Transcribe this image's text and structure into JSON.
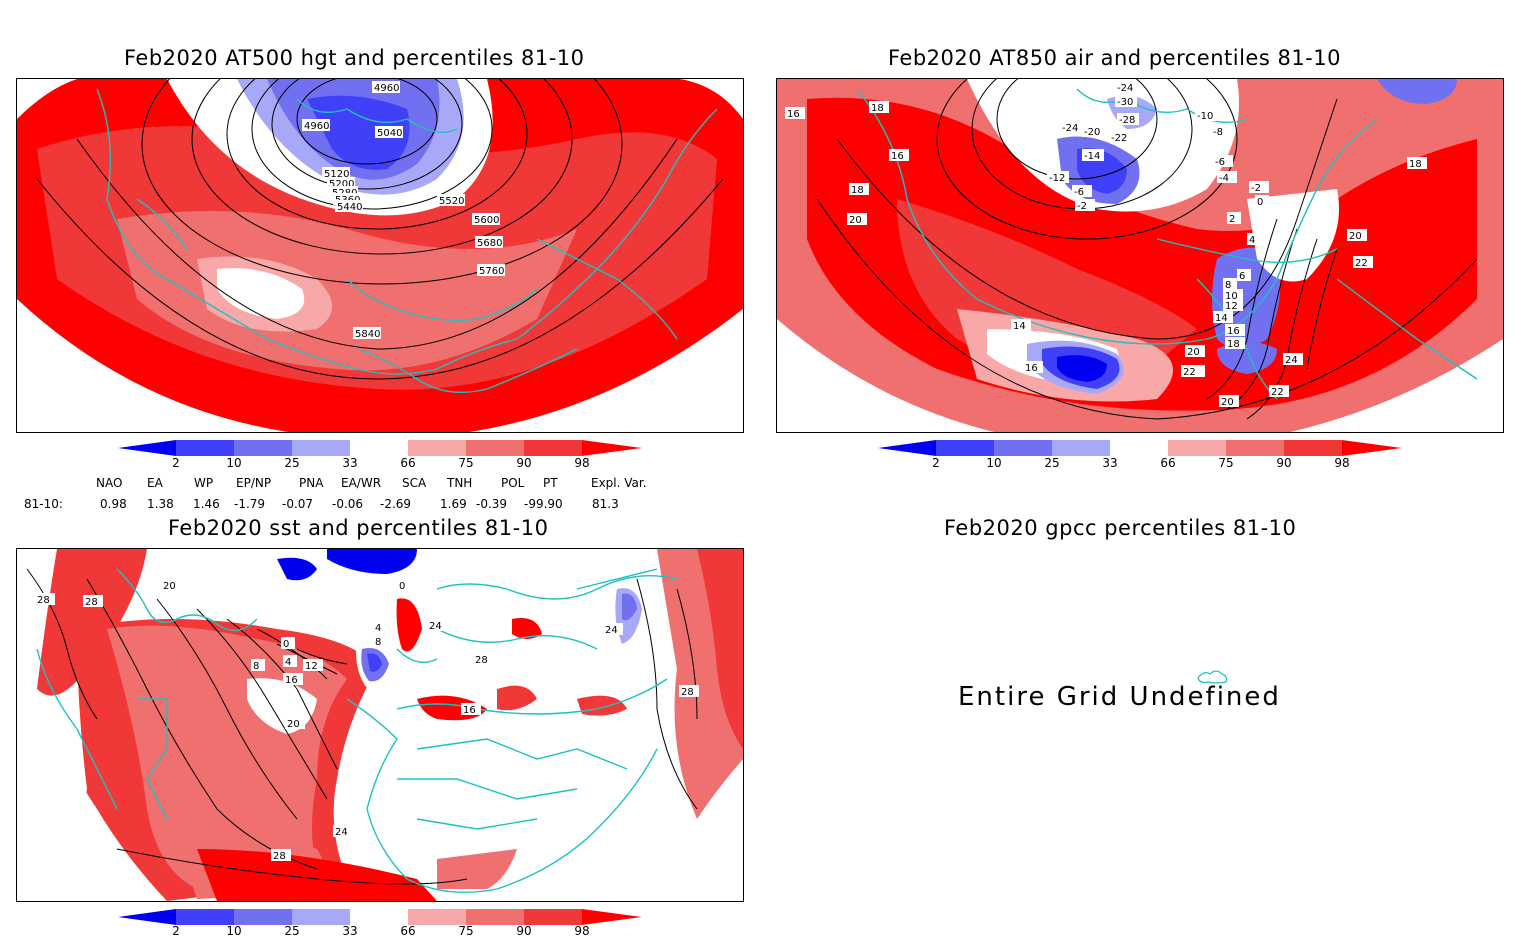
{
  "panels": {
    "p500": {
      "title": "Feb2020 AT500 hgt and percentiles 81-10",
      "contour_labels": [
        "4960",
        "4960",
        "5040",
        "5120",
        "5200",
        "5280",
        "5360",
        "5440",
        "5520",
        "5600",
        "5680",
        "5760",
        "5840"
      ]
    },
    "p850": {
      "title": "Feb2020 AT850 air and percentiles 81-10",
      "contour_labels": [
        "-24",
        "-30",
        "-28",
        "-22",
        "-20",
        "-24",
        "-14",
        "-12",
        "-6",
        "-2",
        "-10",
        "-8",
        "-6",
        "-4",
        "-2",
        "0",
        "2",
        "4",
        "6",
        "8",
        "10",
        "12",
        "14",
        "16",
        "18",
        "20",
        "22",
        "24",
        "22",
        "20",
        "18",
        "16",
        "20",
        "18",
        "14",
        "16",
        "22",
        "20",
        "16",
        "18"
      ]
    },
    "sst": {
      "title": "Feb2020 sst and percentiles 81-10",
      "contour_labels": [
        "28",
        "28",
        "20",
        "0",
        "4",
        "8",
        "12",
        "16",
        "20",
        "24",
        "28",
        "28",
        "24",
        "16",
        "0",
        "4",
        "8",
        "24",
        "28"
      ]
    },
    "gpcc": {
      "title": "Feb2020 gpcc percentiles 81-10",
      "undefined_text": "Entire Grid Undefined"
    }
  },
  "colorbar": {
    "labels": [
      "2",
      "10",
      "25",
      "33",
      "66",
      "75",
      "90",
      "98"
    ],
    "colors": [
      "#0000f0",
      "#4040f8",
      "#7070f0",
      "#a8a8f8",
      "#ffffff",
      "#f8a8a8",
      "#f07070",
      "#f03838",
      "#ff0000"
    ]
  },
  "indices": {
    "headers": [
      "NAO",
      "EA",
      "WP",
      "EP/NP",
      "PNA",
      "EA/WR",
      "SCA",
      "TNH",
      "POL",
      "PT",
      "Expl. Var."
    ],
    "row_label": "81-10:",
    "values": [
      "0.98",
      "1.38",
      "1.46",
      "-1.79",
      "-0.07",
      "-0.06",
      "-2.69",
      "1.69",
      "-0.39",
      "-99.90",
      "81.3"
    ]
  },
  "colors": {
    "coast": "#20c0c0",
    "contour": "#000000"
  }
}
